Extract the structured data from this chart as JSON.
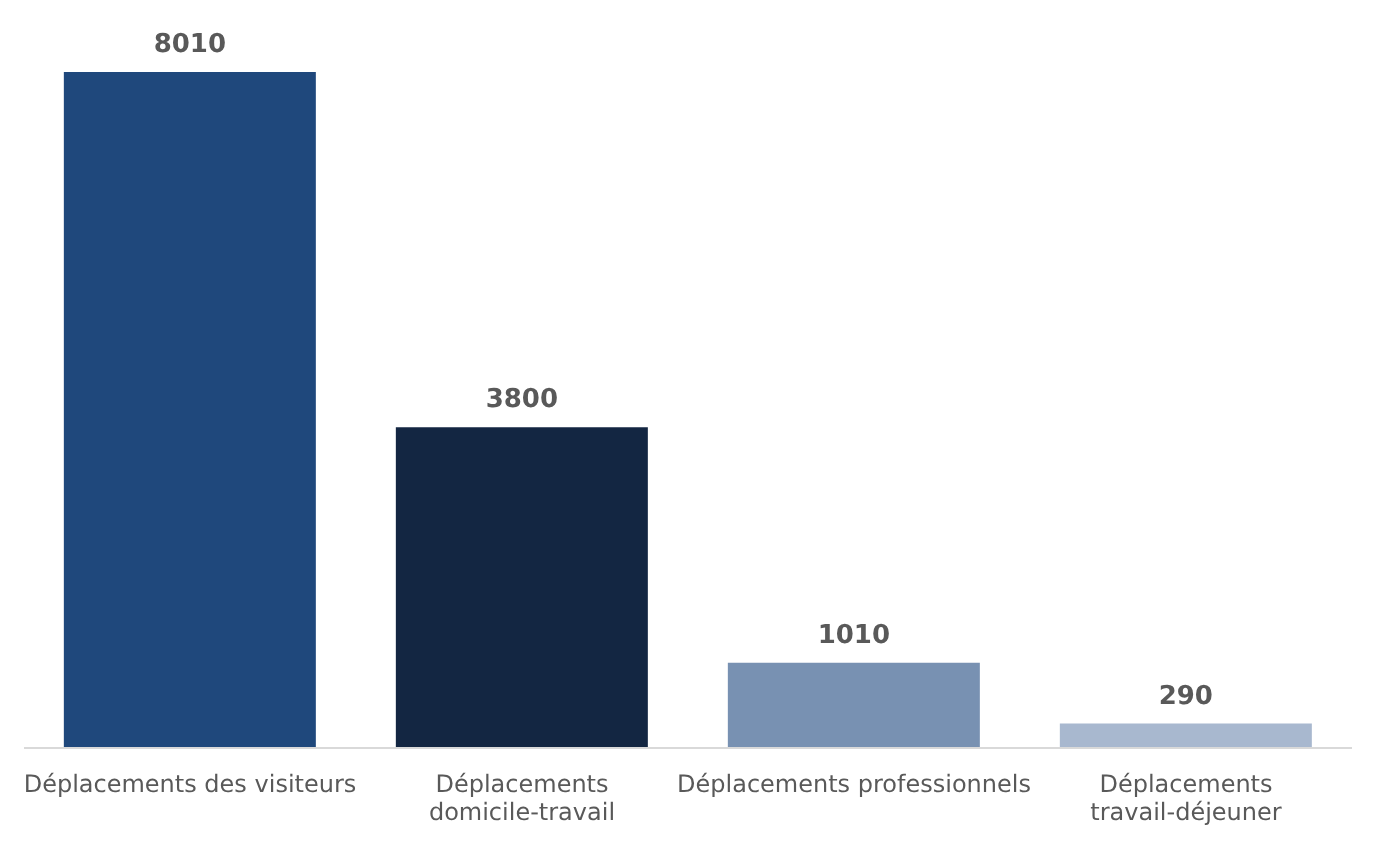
{
  "chart_data": {
    "type": "bar",
    "categories": [
      "Déplacements des visiteurs",
      "Déplacements domicile-travail",
      "Déplacements professionnels",
      "Déplacements travail-déjeuner"
    ],
    "values": [
      8010,
      3800,
      1010,
      290
    ],
    "colors": [
      "#1f487c",
      "#132642",
      "#7891b2",
      "#a8b8cf"
    ],
    "data_labels": true
  }
}
